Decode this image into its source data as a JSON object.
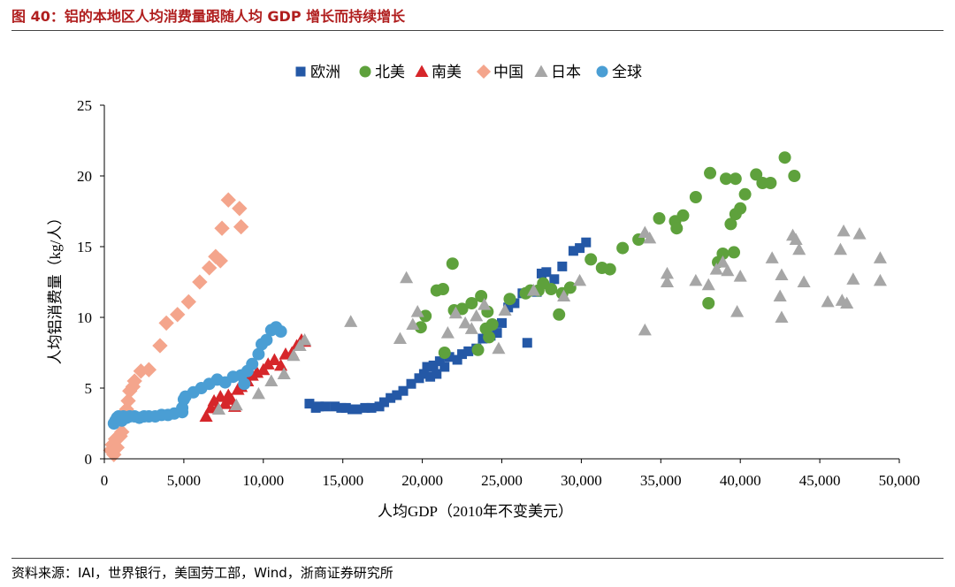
{
  "figure": {
    "title": "图 40：铝的本地区人均消费量跟随人均 GDP 增长而持续增长",
    "source": "资料来源：IAI，世界银行，美国劳工部，Wind，浙商证券研究所"
  },
  "chart_data": {
    "type": "scatter",
    "title": "",
    "xlabel": "人均GDP（2010年不变美元）",
    "ylabel": "人均铝消费量（kg/人）",
    "xlim": [
      0,
      50000
    ],
    "ylim": [
      0,
      25
    ],
    "xticks": [
      0,
      5000,
      10000,
      15000,
      20000,
      25000,
      30000,
      35000,
      40000,
      45000,
      50000
    ],
    "xtick_labels": [
      "0",
      "5,000",
      "10,000",
      "15,000",
      "20,000",
      "25,000",
      "30,000",
      "35,000",
      "40,000",
      "45,000",
      "50,000"
    ],
    "yticks": [
      0,
      5,
      10,
      15,
      20,
      25
    ],
    "ytick_labels": [
      "0",
      "5",
      "10",
      "15",
      "20",
      "25"
    ],
    "legend_position": "top",
    "series": [
      {
        "name": "欧洲",
        "marker": "square",
        "color": "#2458a6",
        "points": [
          [
            12900,
            3.9
          ],
          [
            13300,
            3.6
          ],
          [
            13500,
            3.7
          ],
          [
            13900,
            3.7
          ],
          [
            14500,
            3.7
          ],
          [
            14900,
            3.6
          ],
          [
            15200,
            3.6
          ],
          [
            15600,
            3.5
          ],
          [
            15900,
            3.5
          ],
          [
            16400,
            3.6
          ],
          [
            16800,
            3.6
          ],
          [
            17300,
            3.7
          ],
          [
            17600,
            4.0
          ],
          [
            18000,
            4.3
          ],
          [
            18400,
            4.5
          ],
          [
            18800,
            4.8
          ],
          [
            19300,
            5.3
          ],
          [
            19800,
            5.7
          ],
          [
            20100,
            6.0
          ],
          [
            20300,
            6.5
          ],
          [
            20500,
            5.8
          ],
          [
            20700,
            6.6
          ],
          [
            20900,
            6.0
          ],
          [
            21100,
            6.9
          ],
          [
            21400,
            6.5
          ],
          [
            21700,
            7.2
          ],
          [
            22200,
            7.0
          ],
          [
            22500,
            7.4
          ],
          [
            22900,
            7.6
          ],
          [
            23400,
            7.8
          ],
          [
            23800,
            8.5
          ],
          [
            24300,
            8.7
          ],
          [
            24700,
            8.9
          ],
          [
            25000,
            9.6
          ],
          [
            25400,
            10.7
          ],
          [
            25800,
            11.0
          ],
          [
            26300,
            11.7
          ],
          [
            26600,
            8.2
          ],
          [
            27200,
            11.8
          ],
          [
            27500,
            13.1
          ],
          [
            27800,
            13.2
          ],
          [
            28300,
            12.7
          ],
          [
            28800,
            13.6
          ],
          [
            29500,
            14.7
          ],
          [
            29900,
            14.9
          ],
          [
            30300,
            15.3
          ]
        ]
      },
      {
        "name": "北美",
        "marker": "circle",
        "color": "#5ea13c",
        "points": [
          [
            19900,
            9.3
          ],
          [
            20200,
            10.1
          ],
          [
            20900,
            11.9
          ],
          [
            21300,
            12.0
          ],
          [
            21400,
            7.5
          ],
          [
            21900,
            13.8
          ],
          [
            22000,
            10.5
          ],
          [
            22500,
            10.6
          ],
          [
            23100,
            11.0
          ],
          [
            23500,
            7.7
          ],
          [
            23700,
            11.5
          ],
          [
            24000,
            9.2
          ],
          [
            24100,
            10.4
          ],
          [
            24200,
            8.6
          ],
          [
            24400,
            9.5
          ],
          [
            25500,
            11.3
          ],
          [
            26500,
            11.7
          ],
          [
            26800,
            11.9
          ],
          [
            27300,
            11.9
          ],
          [
            27600,
            12.4
          ],
          [
            28100,
            12.0
          ],
          [
            28600,
            10.2
          ],
          [
            28800,
            11.7
          ],
          [
            29300,
            12.1
          ],
          [
            30600,
            14.1
          ],
          [
            31300,
            13.5
          ],
          [
            31800,
            13.4
          ],
          [
            32600,
            14.9
          ],
          [
            33600,
            15.5
          ],
          [
            34900,
            17.0
          ],
          [
            35900,
            16.8
          ],
          [
            36000,
            16.3
          ],
          [
            36400,
            17.2
          ],
          [
            37200,
            18.5
          ],
          [
            38000,
            11.0
          ],
          [
            38100,
            20.2
          ],
          [
            38600,
            13.9
          ],
          [
            38900,
            14.5
          ],
          [
            39100,
            19.8
          ],
          [
            39400,
            16.6
          ],
          [
            39600,
            14.6
          ],
          [
            39700,
            19.8
          ],
          [
            39700,
            17.3
          ],
          [
            40000,
            17.7
          ],
          [
            40300,
            18.7
          ],
          [
            41000,
            20.1
          ],
          [
            41400,
            19.5
          ],
          [
            41900,
            19.5
          ],
          [
            42800,
            21.3
          ],
          [
            43400,
            20.0
          ]
        ]
      },
      {
        "name": "南美",
        "marker": "triangle",
        "color": "#d6262a",
        "points": [
          [
            6400,
            3.0
          ],
          [
            6700,
            3.6
          ],
          [
            6900,
            4.1
          ],
          [
            7100,
            3.6
          ],
          [
            7300,
            4.4
          ],
          [
            7600,
            3.9
          ],
          [
            7800,
            4.5
          ],
          [
            8000,
            4.2
          ],
          [
            8200,
            3.7
          ],
          [
            8400,
            4.9
          ],
          [
            8600,
            5.1
          ],
          [
            8800,
            5.6
          ],
          [
            9000,
            5.5
          ],
          [
            9300,
            5.9
          ],
          [
            9600,
            6.1
          ],
          [
            10000,
            6.3
          ],
          [
            10300,
            6.7
          ],
          [
            10700,
            7.0
          ],
          [
            11100,
            6.6
          ],
          [
            11400,
            7.4
          ],
          [
            11800,
            7.5
          ],
          [
            12100,
            8.0
          ],
          [
            12400,
            8.4
          ],
          [
            12600,
            8.3
          ]
        ]
      },
      {
        "name": "中国",
        "marker": "diamond",
        "color": "#f4a58c",
        "points": [
          [
            400,
            0.6
          ],
          [
            500,
            1.0
          ],
          [
            600,
            0.3
          ],
          [
            700,
            1.4
          ],
          [
            800,
            0.8
          ],
          [
            1000,
            1.6
          ],
          [
            1100,
            1.9
          ],
          [
            1300,
            2.9
          ],
          [
            1400,
            3.5
          ],
          [
            1500,
            4.1
          ],
          [
            1600,
            4.8
          ],
          [
            1800,
            5.1
          ],
          [
            1900,
            5.5
          ],
          [
            2300,
            6.2
          ],
          [
            2800,
            6.3
          ],
          [
            3500,
            8.0
          ],
          [
            3900,
            9.6
          ],
          [
            4600,
            10.2
          ],
          [
            5300,
            11.1
          ],
          [
            6000,
            12.5
          ],
          [
            6600,
            13.5
          ],
          [
            7000,
            14.3
          ],
          [
            7300,
            14.0
          ],
          [
            7400,
            16.3
          ],
          [
            7800,
            18.3
          ],
          [
            8500,
            17.7
          ],
          [
            8600,
            16.4
          ]
        ]
      },
      {
        "name": "日本",
        "marker": "triangle",
        "color": "#a6a6a6",
        "points": [
          [
            7200,
            3.5
          ],
          [
            8300,
            3.8
          ],
          [
            9700,
            4.6
          ],
          [
            10500,
            5.5
          ],
          [
            11300,
            6.0
          ],
          [
            11900,
            7.3
          ],
          [
            12300,
            8.0
          ],
          [
            12600,
            8.4
          ],
          [
            15500,
            9.7
          ],
          [
            18600,
            8.5
          ],
          [
            19000,
            12.8
          ],
          [
            19400,
            9.5
          ],
          [
            19700,
            10.4
          ],
          [
            21600,
            8.9
          ],
          [
            22100,
            10.3
          ],
          [
            22700,
            9.6
          ],
          [
            23100,
            9.2
          ],
          [
            23400,
            10.1
          ],
          [
            23900,
            10.9
          ],
          [
            24800,
            7.8
          ],
          [
            25200,
            10.5
          ],
          [
            27000,
            11.9
          ],
          [
            28900,
            11.5
          ],
          [
            29900,
            12.6
          ],
          [
            34000,
            16.0
          ],
          [
            34000,
            9.1
          ],
          [
            34300,
            15.6
          ],
          [
            35400,
            13.1
          ],
          [
            35400,
            12.5
          ],
          [
            37200,
            12.6
          ],
          [
            38000,
            12.3
          ],
          [
            38500,
            13.4
          ],
          [
            38900,
            13.9
          ],
          [
            39200,
            13.3
          ],
          [
            39800,
            10.4
          ],
          [
            40000,
            12.9
          ],
          [
            42000,
            14.2
          ],
          [
            42500,
            11.5
          ],
          [
            42600,
            10.0
          ],
          [
            42600,
            13.0
          ],
          [
            43300,
            15.8
          ],
          [
            43500,
            15.5
          ],
          [
            43700,
            14.8
          ],
          [
            44000,
            12.5
          ],
          [
            45500,
            11.1
          ],
          [
            46300,
            14.8
          ],
          [
            46400,
            11.2
          ],
          [
            46500,
            16.1
          ],
          [
            46700,
            11.0
          ],
          [
            47100,
            12.7
          ],
          [
            47500,
            15.9
          ],
          [
            48800,
            14.2
          ],
          [
            48800,
            12.6
          ]
        ]
      },
      {
        "name": "全球",
        "marker": "circle",
        "color": "#4a9ed4",
        "points": [
          [
            600,
            2.5
          ],
          [
            700,
            2.7
          ],
          [
            800,
            2.9
          ],
          [
            900,
            3.0
          ],
          [
            1100,
            2.7
          ],
          [
            1200,
            3.0
          ],
          [
            1400,
            2.9
          ],
          [
            1600,
            3.0
          ],
          [
            1900,
            3.0
          ],
          [
            2200,
            2.9
          ],
          [
            2500,
            3.0
          ],
          [
            2800,
            3.0
          ],
          [
            3200,
            3.0
          ],
          [
            3600,
            3.1
          ],
          [
            4000,
            3.1
          ],
          [
            4400,
            3.2
          ],
          [
            4900,
            3.3
          ],
          [
            4900,
            3.6
          ],
          [
            5000,
            4.2
          ],
          [
            5100,
            4.4
          ],
          [
            5600,
            4.7
          ],
          [
            6100,
            5.0
          ],
          [
            6600,
            5.3
          ],
          [
            7100,
            5.6
          ],
          [
            7600,
            5.4
          ],
          [
            8100,
            5.8
          ],
          [
            8600,
            5.9
          ],
          [
            8800,
            5.3
          ],
          [
            9000,
            6.2
          ],
          [
            9300,
            6.7
          ],
          [
            9700,
            7.4
          ],
          [
            9900,
            8.1
          ],
          [
            10200,
            8.4
          ],
          [
            10500,
            9.1
          ],
          [
            10800,
            9.3
          ],
          [
            11100,
            9.0
          ]
        ]
      }
    ]
  }
}
